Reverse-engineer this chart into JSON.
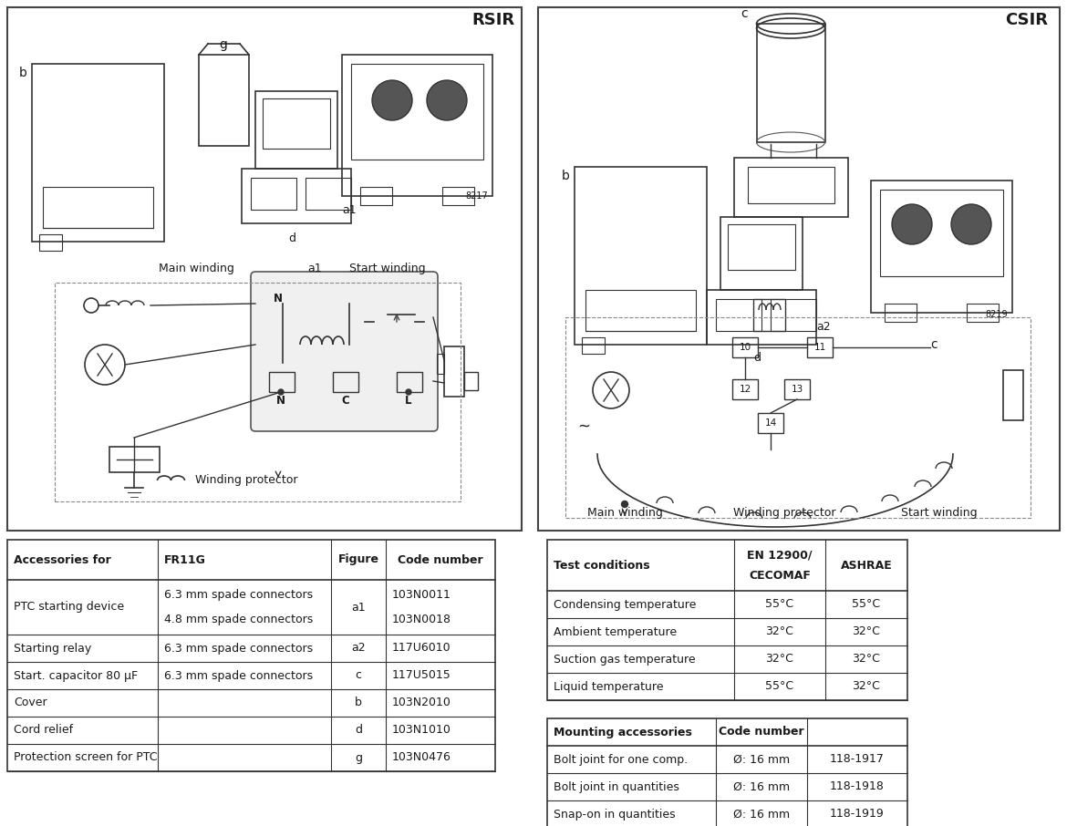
{
  "bg_color": "#ffffff",
  "lc": "#333333",
  "rsir_label": "RSIR",
  "csir_label": "CSIR",
  "acc_header": [
    "Accessories for",
    "FR11G",
    "Figure",
    "Code number"
  ],
  "acc_rows": [
    [
      "PTC starting device",
      "6.3 mm spade connectors",
      "a1",
      "103N0011"
    ],
    [
      "",
      "4.8 mm spade connectors",
      "",
      "103N0018"
    ],
    [
      "Starting relay",
      "6.3 mm spade connectors",
      "a2",
      "117U6010"
    ],
    [
      "Start. capacitor 80 µF",
      "6.3 mm spade connectors",
      "c",
      "117U5015"
    ],
    [
      "Cover",
      "",
      "b",
      "103N2010"
    ],
    [
      "Cord relief",
      "",
      "d",
      "103N1010"
    ],
    [
      "Protection screen for PTC",
      "",
      "g",
      "103N0476"
    ]
  ],
  "test_header": [
    "Test conditions",
    "EN 12900/\nCECOMAF",
    "ASHRAE"
  ],
  "test_rows": [
    [
      "Condensing temperature",
      "55°C",
      "55°C"
    ],
    [
      "Ambient temperature",
      "32°C",
      "32°C"
    ],
    [
      "Suction gas temperature",
      "32°C",
      "32°C"
    ],
    [
      "Liquid temperature",
      "55°C",
      "32°C"
    ]
  ],
  "mount_header": [
    "Mounting accessories",
    "",
    "Code number"
  ],
  "mount_rows": [
    [
      "Bolt joint for one comp.",
      "Ø: 16 mm",
      "118-1917"
    ],
    [
      "Bolt joint in quantities",
      "Ø: 16 mm",
      "118-1918"
    ],
    [
      "Snap-on in quantities",
      "Ø: 16 mm",
      "118-1919"
    ]
  ]
}
